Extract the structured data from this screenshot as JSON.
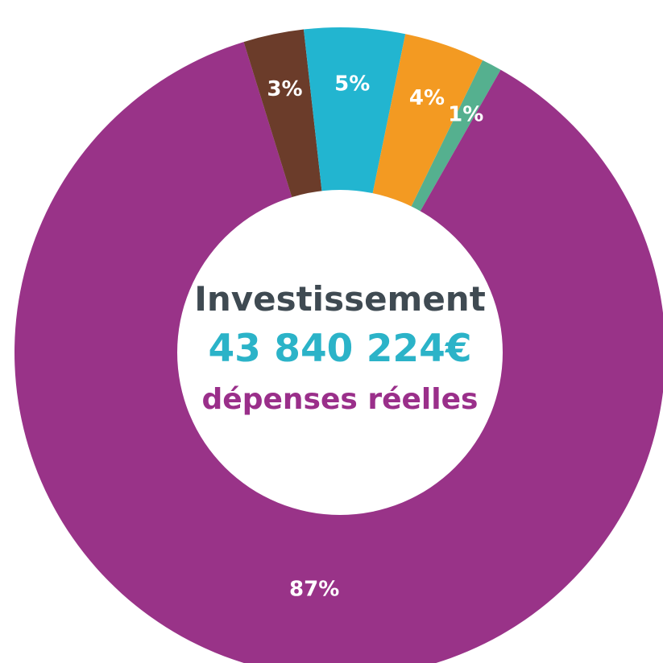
{
  "chart_data": {
    "type": "pie",
    "style": "donut",
    "slices": [
      {
        "label": "1%",
        "value": 1,
        "color": "#55b08f"
      },
      {
        "label": "87%",
        "value": 87,
        "color": "#993388"
      },
      {
        "label": "3%",
        "value": 3,
        "color": "#6b3c2a"
      },
      {
        "label": "5%",
        "value": 5,
        "color": "#22b5d0"
      },
      {
        "label": "4%",
        "value": 4,
        "color": "#f39a22"
      }
    ],
    "center": {
      "title": "Investissement",
      "amount": "43 840 224€",
      "subtitle": "dépenses réelles"
    }
  }
}
